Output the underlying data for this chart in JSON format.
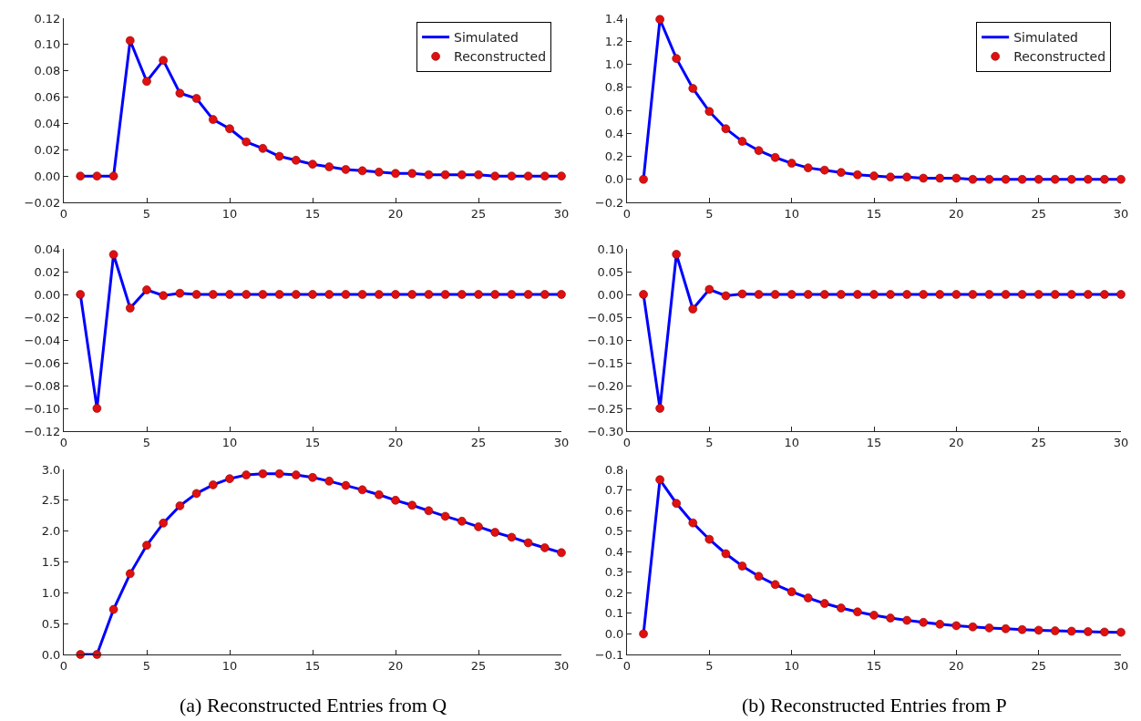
{
  "chart_data": [
    {
      "type": "line",
      "x": [
        1,
        2,
        3,
        4,
        5,
        6,
        7,
        8,
        9,
        10,
        11,
        12,
        13,
        14,
        15,
        16,
        17,
        18,
        19,
        20,
        21,
        22,
        23,
        24,
        25,
        26,
        27,
        28,
        29,
        30
      ],
      "xlim": [
        0,
        30
      ],
      "xticks": [
        0,
        5,
        10,
        15,
        20,
        25,
        30
      ],
      "ylim": [
        -0.02,
        0.12
      ],
      "yticks": [
        {
          "value": -0.02,
          "label": "−0.02"
        },
        {
          "value": 0,
          "label": "0.00"
        },
        {
          "value": 0.02,
          "label": "0.02"
        },
        {
          "value": 0.04,
          "label": "0.04"
        },
        {
          "value": 0.06,
          "label": "0.06"
        },
        {
          "value": 0.08,
          "label": "0.08"
        },
        {
          "value": 0.1,
          "label": "0.10"
        },
        {
          "value": 0.12,
          "label": "0.12"
        }
      ],
      "grid": false,
      "legend": "top right",
      "series": [
        {
          "name": "Simulated",
          "color": "#0000ff",
          "marker": "none",
          "values": [
            0,
            0,
            0,
            0.103,
            0.072,
            0.088,
            0.063,
            0.059,
            0.043,
            0.036,
            0.026,
            0.021,
            0.015,
            0.012,
            0.009,
            0.007,
            0.005,
            0.004,
            0.003,
            0.002,
            0.002,
            0.001,
            0.001,
            0.001,
            0.001,
            0,
            0,
            0,
            0,
            0
          ]
        },
        {
          "name": "Reconstructed",
          "type": "scatter",
          "color": "#e01010",
          "marker": "circle",
          "values": [
            0,
            0,
            0,
            0.103,
            0.072,
            0.088,
            0.063,
            0.059,
            0.043,
            0.036,
            0.026,
            0.021,
            0.015,
            0.012,
            0.009,
            0.007,
            0.005,
            0.004,
            0.003,
            0.002,
            0.002,
            0.001,
            0.001,
            0.001,
            0.001,
            0,
            0,
            0,
            0,
            0
          ]
        }
      ]
    },
    {
      "type": "line",
      "x": [
        1,
        2,
        3,
        4,
        5,
        6,
        7,
        8,
        9,
        10,
        11,
        12,
        13,
        14,
        15,
        16,
        17,
        18,
        19,
        20,
        21,
        22,
        23,
        24,
        25,
        26,
        27,
        28,
        29,
        30
      ],
      "xlim": [
        0,
        30
      ],
      "xticks": [
        0,
        5,
        10,
        15,
        20,
        25,
        30
      ],
      "ylim": [
        -0.2,
        1.4
      ],
      "yticks": [
        {
          "value": -0.2,
          "label": "−0.2"
        },
        {
          "value": 0,
          "label": "0.0"
        },
        {
          "value": 0.2,
          "label": "0.2"
        },
        {
          "value": 0.4,
          "label": "0.4"
        },
        {
          "value": 0.6,
          "label": "0.6"
        },
        {
          "value": 0.8,
          "label": "0.8"
        },
        {
          "value": 1,
          "label": "1.0"
        },
        {
          "value": 1.2,
          "label": "1.2"
        },
        {
          "value": 1.4,
          "label": "1.4"
        }
      ],
      "grid": false,
      "legend": "top right",
      "series": [
        {
          "name": "Simulated",
          "color": "#0000ff",
          "marker": "none",
          "values": [
            0,
            1.39,
            1.05,
            0.79,
            0.59,
            0.44,
            0.33,
            0.25,
            0.19,
            0.14,
            0.1,
            0.08,
            0.06,
            0.04,
            0.03,
            0.02,
            0.02,
            0.01,
            0.01,
            0.01,
            0,
            0,
            0,
            0,
            0,
            0,
            0,
            0,
            0,
            0
          ]
        },
        {
          "name": "Reconstructed",
          "type": "scatter",
          "color": "#e01010",
          "marker": "circle",
          "values": [
            0,
            1.39,
            1.05,
            0.79,
            0.59,
            0.44,
            0.33,
            0.25,
            0.19,
            0.14,
            0.1,
            0.08,
            0.06,
            0.04,
            0.03,
            0.02,
            0.02,
            0.01,
            0.01,
            0.01,
            0,
            0,
            0,
            0,
            0,
            0,
            0,
            0,
            0,
            0
          ]
        }
      ]
    },
    {
      "type": "line",
      "x": [
        1,
        2,
        3,
        4,
        5,
        6,
        7,
        8,
        9,
        10,
        11,
        12,
        13,
        14,
        15,
        16,
        17,
        18,
        19,
        20,
        21,
        22,
        23,
        24,
        25,
        26,
        27,
        28,
        29,
        30
      ],
      "xlim": [
        0,
        30
      ],
      "xticks": [
        0,
        5,
        10,
        15,
        20,
        25,
        30
      ],
      "ylim": [
        -0.12,
        0.04
      ],
      "yticks": [
        {
          "value": -0.12,
          "label": "−0.12"
        },
        {
          "value": -0.1,
          "label": "−0.10"
        },
        {
          "value": -0.08,
          "label": "−0.08"
        },
        {
          "value": -0.06,
          "label": "−0.06"
        },
        {
          "value": -0.04,
          "label": "−0.04"
        },
        {
          "value": -0.02,
          "label": "−0.02"
        },
        {
          "value": 0,
          "label": "0.00"
        },
        {
          "value": 0.02,
          "label": "0.02"
        },
        {
          "value": 0.04,
          "label": "0.04"
        }
      ],
      "grid": false,
      "series": [
        {
          "color": "#0000ff",
          "marker": "none",
          "values": [
            0,
            -0.1,
            0.035,
            -0.012,
            0.004,
            -0.001,
            0.001,
            0,
            0,
            0,
            0,
            0,
            0,
            0,
            0,
            0,
            0,
            0,
            0,
            0,
            0,
            0,
            0,
            0,
            0,
            0,
            0,
            0,
            0,
            0
          ]
        },
        {
          "type": "scatter",
          "color": "#e01010",
          "marker": "circle",
          "values": [
            0,
            -0.1,
            0.035,
            -0.012,
            0.004,
            -0.001,
            0.001,
            0,
            0,
            0,
            0,
            0,
            0,
            0,
            0,
            0,
            0,
            0,
            0,
            0,
            0,
            0,
            0,
            0,
            0,
            0,
            0,
            0,
            0,
            0
          ]
        }
      ]
    },
    {
      "type": "line",
      "x": [
        1,
        2,
        3,
        4,
        5,
        6,
        7,
        8,
        9,
        10,
        11,
        12,
        13,
        14,
        15,
        16,
        17,
        18,
        19,
        20,
        21,
        22,
        23,
        24,
        25,
        26,
        27,
        28,
        29,
        30
      ],
      "xlim": [
        0,
        30
      ],
      "xticks": [
        0,
        5,
        10,
        15,
        20,
        25,
        30
      ],
      "ylim": [
        -0.3,
        0.1
      ],
      "yticks": [
        {
          "value": -0.3,
          "label": "−0.30"
        },
        {
          "value": -0.25,
          "label": "−0.25"
        },
        {
          "value": -0.2,
          "label": "−0.20"
        },
        {
          "value": -0.15,
          "label": "−0.15"
        },
        {
          "value": -0.1,
          "label": "−0.10"
        },
        {
          "value": -0.05,
          "label": "−0.05"
        },
        {
          "value": 0,
          "label": "0.00"
        },
        {
          "value": 0.05,
          "label": "0.05"
        },
        {
          "value": 0.1,
          "label": "0.10"
        }
      ],
      "grid": false,
      "series": [
        {
          "color": "#0000ff",
          "marker": "none",
          "values": [
            0,
            -0.25,
            0.088,
            -0.032,
            0.011,
            -0.003,
            0.001,
            0,
            0,
            0,
            0,
            0,
            0,
            0,
            0,
            0,
            0,
            0,
            0,
            0,
            0,
            0,
            0,
            0,
            0,
            0,
            0,
            0,
            0,
            0
          ]
        },
        {
          "type": "scatter",
          "color": "#e01010",
          "marker": "circle",
          "values": [
            0,
            -0.25,
            0.088,
            -0.032,
            0.011,
            -0.003,
            0.001,
            0,
            0,
            0,
            0,
            0,
            0,
            0,
            0,
            0,
            0,
            0,
            0,
            0,
            0,
            0,
            0,
            0,
            0,
            0,
            0,
            0,
            0,
            0
          ]
        }
      ]
    },
    {
      "type": "line",
      "x": [
        1,
        2,
        3,
        4,
        5,
        6,
        7,
        8,
        9,
        10,
        11,
        12,
        13,
        14,
        15,
        16,
        17,
        18,
        19,
        20,
        21,
        22,
        23,
        24,
        25,
        26,
        27,
        28,
        29,
        30
      ],
      "xlim": [
        0,
        30
      ],
      "xticks": [
        0,
        5,
        10,
        15,
        20,
        25,
        30
      ],
      "ylim": [
        0,
        3
      ],
      "yticks": [
        {
          "value": 0,
          "label": "0.0"
        },
        {
          "value": 0.5,
          "label": "0.5"
        },
        {
          "value": 1,
          "label": "1.0"
        },
        {
          "value": 1.5,
          "label": "1.5"
        },
        {
          "value": 2,
          "label": "2.0"
        },
        {
          "value": 2.5,
          "label": "2.5"
        },
        {
          "value": 3,
          "label": "3.0"
        }
      ],
      "grid": false,
      "annotations": [
        "(a) Reconstructed Entries from Q"
      ],
      "series": [
        {
          "color": "#0000ff",
          "marker": "none",
          "values": [
            0,
            0,
            0.73,
            1.31,
            1.77,
            2.13,
            2.41,
            2.61,
            2.75,
            2.85,
            2.91,
            2.93,
            2.93,
            2.91,
            2.87,
            2.81,
            2.74,
            2.67,
            2.59,
            2.5,
            2.42,
            2.33,
            2.24,
            2.16,
            2.07,
            1.98,
            1.9,
            1.81,
            1.73,
            1.65
          ]
        },
        {
          "type": "scatter",
          "color": "#e01010",
          "marker": "circle",
          "values": [
            0,
            0,
            0.73,
            1.31,
            1.77,
            2.13,
            2.41,
            2.61,
            2.75,
            2.85,
            2.91,
            2.93,
            2.93,
            2.91,
            2.87,
            2.81,
            2.74,
            2.67,
            2.59,
            2.5,
            2.42,
            2.33,
            2.24,
            2.16,
            2.07,
            1.98,
            1.9,
            1.81,
            1.73,
            1.65
          ]
        }
      ]
    },
    {
      "type": "line",
      "x": [
        1,
        2,
        3,
        4,
        5,
        6,
        7,
        8,
        9,
        10,
        11,
        12,
        13,
        14,
        15,
        16,
        17,
        18,
        19,
        20,
        21,
        22,
        23,
        24,
        25,
        26,
        27,
        28,
        29,
        30
      ],
      "xlim": [
        0,
        30
      ],
      "xticks": [
        0,
        5,
        10,
        15,
        20,
        25,
        30
      ],
      "ylim": [
        -0.1,
        0.8
      ],
      "yticks": [
        {
          "value": -0.1,
          "label": "−0.1"
        },
        {
          "value": 0,
          "label": "0.0"
        },
        {
          "value": 0.1,
          "label": "0.1"
        },
        {
          "value": 0.2,
          "label": "0.2"
        },
        {
          "value": 0.3,
          "label": "0.3"
        },
        {
          "value": 0.4,
          "label": "0.4"
        },
        {
          "value": 0.5,
          "label": "0.5"
        },
        {
          "value": 0.6,
          "label": "0.6"
        },
        {
          "value": 0.7,
          "label": "0.7"
        },
        {
          "value": 0.8,
          "label": "0.8"
        }
      ],
      "grid": false,
      "annotations": [
        "(b) Reconstructed Entries from P"
      ],
      "series": [
        {
          "color": "#0000ff",
          "marker": "none",
          "values": [
            0,
            0.75,
            0.635,
            0.54,
            0.46,
            0.39,
            0.33,
            0.28,
            0.24,
            0.205,
            0.175,
            0.148,
            0.126,
            0.107,
            0.091,
            0.077,
            0.066,
            0.056,
            0.047,
            0.04,
            0.034,
            0.029,
            0.025,
            0.021,
            0.018,
            0.015,
            0.013,
            0.011,
            0.009,
            0.008
          ]
        },
        {
          "type": "scatter",
          "color": "#e01010",
          "marker": "circle",
          "values": [
            0,
            0.75,
            0.635,
            0.54,
            0.46,
            0.39,
            0.33,
            0.28,
            0.24,
            0.205,
            0.175,
            0.148,
            0.126,
            0.107,
            0.091,
            0.077,
            0.066,
            0.056,
            0.047,
            0.04,
            0.034,
            0.029,
            0.025,
            0.021,
            0.018,
            0.015,
            0.013,
            0.011,
            0.009,
            0.008
          ]
        }
      ]
    }
  ]
}
